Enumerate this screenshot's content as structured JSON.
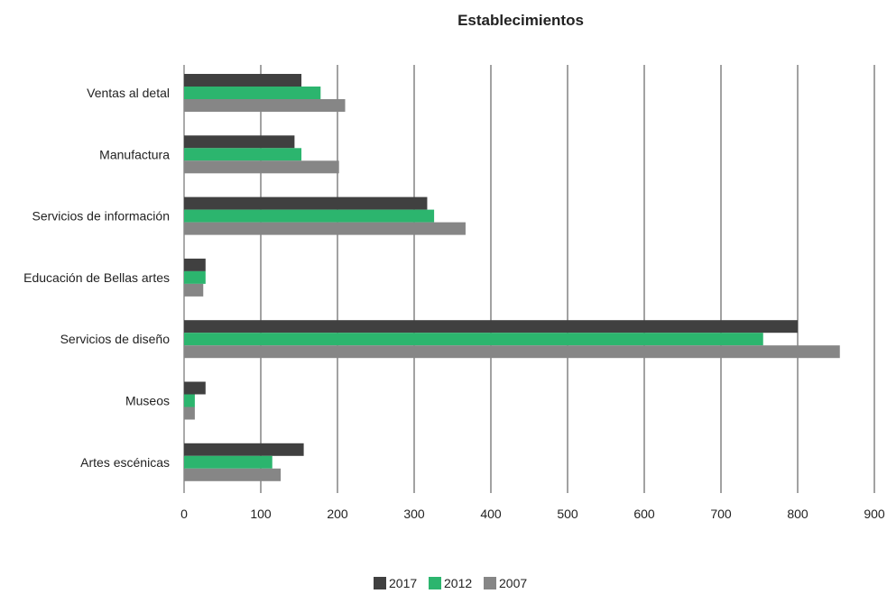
{
  "chart_data": {
    "type": "bar",
    "orientation": "horizontal",
    "title": "Establecimientos",
    "categories": [
      "Ventas al detal",
      "Manufactura",
      "Servicios de información",
      "Educación de Bellas artes",
      "Servicios de diseño",
      "Museos",
      "Artes escénicas"
    ],
    "series": [
      {
        "name": "2017",
        "color": "#404040",
        "values": [
          153,
          144,
          317,
          28,
          800,
          28,
          156
        ]
      },
      {
        "name": "2012",
        "color": "#2cb56e",
        "values": [
          178,
          153,
          326,
          28,
          755,
          14,
          115
        ]
      },
      {
        "name": "2007",
        "color": "#868686",
        "values": [
          210,
          202,
          367,
          25,
          855,
          14,
          126
        ]
      }
    ],
    "x_ticks": [
      "0",
      "100",
      "200",
      "300",
      "400",
      "500",
      "600",
      "700",
      "800",
      "900"
    ],
    "xlim": [
      0,
      900
    ],
    "grid": "vertical",
    "legend": "bottom-center"
  }
}
